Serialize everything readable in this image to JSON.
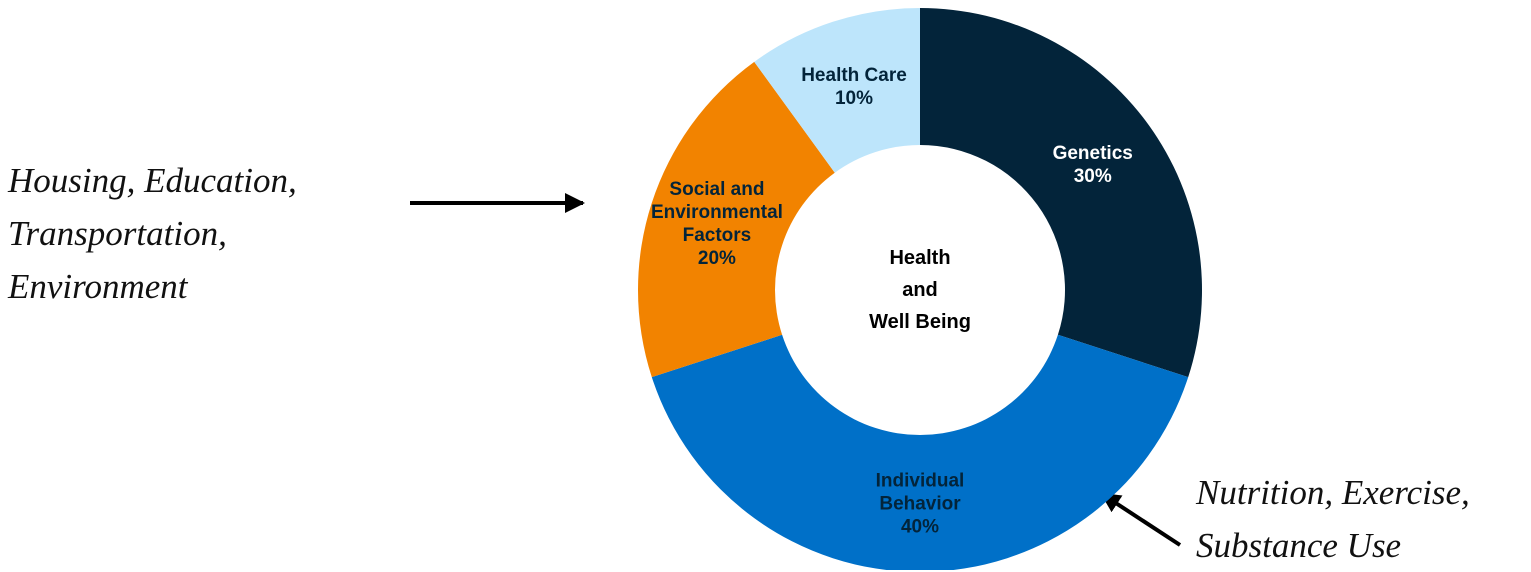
{
  "chart_data": {
    "type": "donut",
    "center_label": "Health\nand\nWell Being",
    "categories": [
      "Genetics",
      "Individual\nBehavior",
      "Social and\nEnvironmental\nFactors",
      "Health Care"
    ],
    "values": [
      30,
      40,
      20,
      10
    ],
    "value_labels": [
      "30%",
      "40%",
      "20%",
      "10%"
    ],
    "colors": [
      "#03243a",
      "#0070c8",
      "#f28300",
      "#bde5fb"
    ],
    "label_colors": [
      "#ffffff",
      "#03243a",
      "#03243a",
      "#03243a"
    ],
    "annotations": [
      "Housing, Education,\nTransportation,\nEnvironment",
      "Nutrition, Exercise,\nSubstance Use"
    ]
  }
}
